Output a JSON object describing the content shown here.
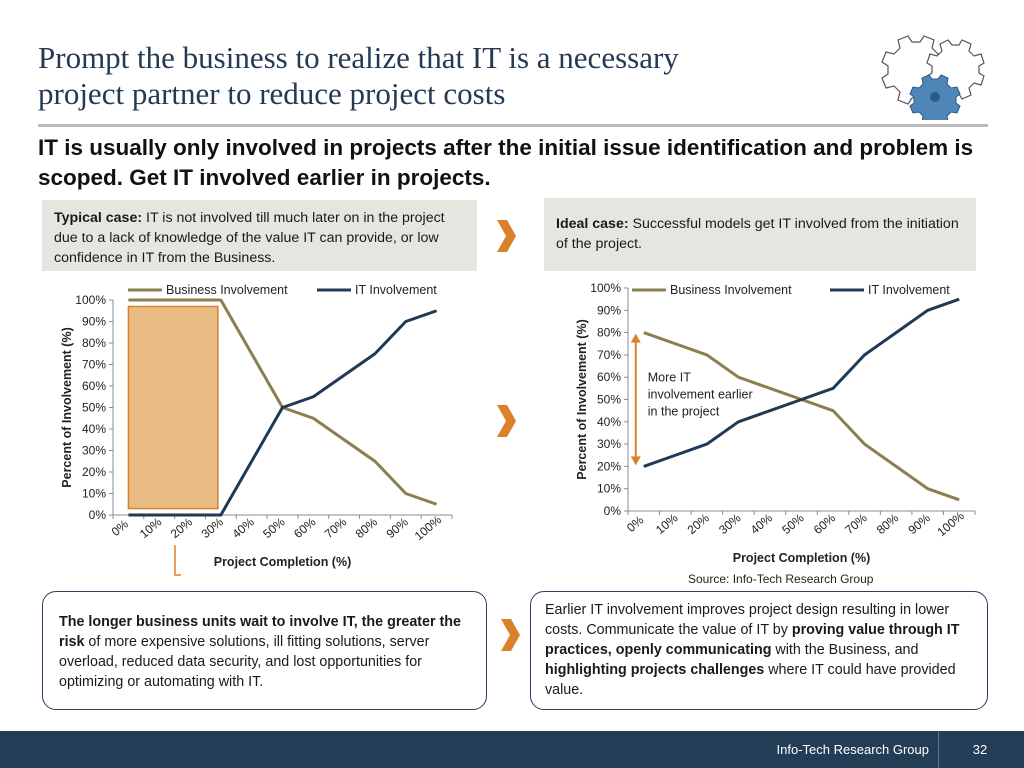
{
  "slide": {
    "title_line1": "Prompt the business to realize that IT is a necessary",
    "title_line2": "project partner to reduce project costs",
    "subtitle": "IT is usually only involved in projects after the initial issue identification and problem is scoped. Get IT involved earlier in projects.",
    "typical_case": {
      "label": "Typical case:",
      "text": " IT is not involved till much later on in the project due to a lack of knowledge of the value IT can provide, or low confidence in IT from the Business."
    },
    "ideal_case": {
      "label": "Ideal case:",
      "text": " Successful models get IT involved from the initiation of the project."
    },
    "source": "Source: Info-Tech Research Group",
    "callout_left": {
      "bold": "The longer business units wait to involve IT, the greater the risk",
      "text": " of more expensive solutions, ill fitting solutions, server overload, reduced data security, and lost opportunities for optimizing or automating with IT."
    },
    "callout_right": {
      "p1": "Earlier IT involvement improves project design resulting in lower costs. Communicate the value of IT by ",
      "b1": "proving value through IT practices, openly communicating",
      "p2": " with the Business, and ",
      "b2": "highlighting projects challenges",
      "p3": " where IT could have provided value."
    },
    "footer_org": "Info-Tech Research Group",
    "footer_page": "32"
  },
  "colors": {
    "business": "#8b7f4f",
    "it": "#1f3a55",
    "highlight_fill": "#e8bb82",
    "highlight_stroke": "#d9822b",
    "chevron": "#d9822b"
  },
  "icons": {
    "logo": "gears-icon",
    "chevron": "chevron-right-icon"
  },
  "chart_data": [
    {
      "type": "line",
      "ylabel": "Percent of Involvement (%)",
      "xlabel": "Project Completion (%)",
      "categories": [
        "0%",
        "10%",
        "20%",
        "30%",
        "40%",
        "50%",
        "60%",
        "70%",
        "80%",
        "90%",
        "100%"
      ],
      "yticks": [
        "0%",
        "10%",
        "20%",
        "30%",
        "40%",
        "50%",
        "60%",
        "70%",
        "80%",
        "90%",
        "100%"
      ],
      "ylim": [
        0,
        100
      ],
      "series": [
        {
          "name": "Business Involvement",
          "values": [
            100,
            100,
            100,
            100,
            75,
            50,
            45,
            35,
            25,
            10,
            5
          ]
        },
        {
          "name": "IT Involvement",
          "values": [
            0,
            0,
            0,
            0,
            25,
            50,
            55,
            65,
            75,
            90,
            95
          ]
        }
      ],
      "legend": "top",
      "highlight_range": {
        "x_from": 0,
        "x_to": 3,
        "y_from": 3,
        "y_to": 97
      }
    },
    {
      "type": "line",
      "ylabel": "Percent of Involvement (%)",
      "xlabel": "Project Completion (%)",
      "categories": [
        "0%",
        "10%",
        "20%",
        "30%",
        "40%",
        "50%",
        "60%",
        "70%",
        "80%",
        "90%",
        "100%"
      ],
      "yticks": [
        "0%",
        "10%",
        "20%",
        "30%",
        "40%",
        "50%",
        "60%",
        "70%",
        "80%",
        "90%",
        "100%"
      ],
      "ylim": [
        0,
        100
      ],
      "series": [
        {
          "name": "Business Involvement",
          "values": [
            80,
            75,
            70,
            60,
            55,
            50,
            45,
            30,
            20,
            10,
            5
          ]
        },
        {
          "name": "IT Involvement",
          "values": [
            20,
            25,
            30,
            40,
            45,
            50,
            55,
            70,
            80,
            90,
            95
          ]
        }
      ],
      "legend": "top",
      "annotation": {
        "lines": [
          "More IT",
          "involvement earlier",
          "in the project"
        ],
        "arrow_from": 80,
        "arrow_to": 20
      }
    }
  ]
}
